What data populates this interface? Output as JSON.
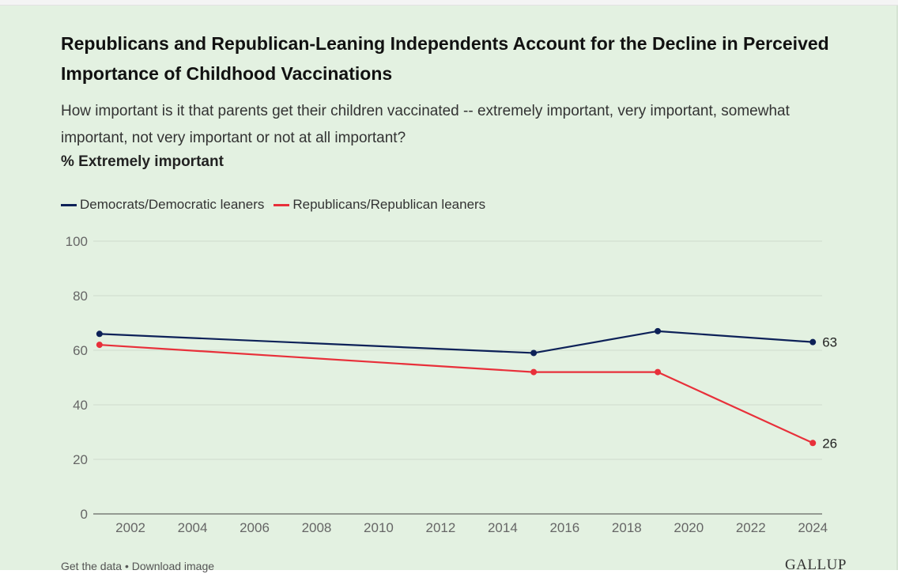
{
  "title": "Republicans and Republican-Leaning Independents Account for the Decline in Perceived Importance of Childhood Vaccinations",
  "subtitle": "How important is it that parents get their children vaccinated -- extremely important, very important, somewhat important, not very important or not at all important?",
  "measure": "% Extremely important",
  "colors": {
    "democrats": "#0d2158",
    "republicans": "#e8303a",
    "background": "#e3f1e1",
    "grid": "#cfdccd"
  },
  "chart_data": {
    "type": "line",
    "title": "Republicans and Republican-Leaning Independents Account for the Decline in Perceived Importance of Childhood Vaccinations",
    "ylabel": "% Extremely important",
    "xlabel": "",
    "xlim": [
      2001,
      2024
    ],
    "ylim": [
      0,
      100
    ],
    "yticks": [
      0,
      20,
      40,
      60,
      80,
      100
    ],
    "xticks": [
      2002,
      2004,
      2006,
      2008,
      2010,
      2012,
      2014,
      2016,
      2018,
      2020,
      2022,
      2024
    ],
    "grid": true,
    "legend_position": "top-left",
    "series": [
      {
        "name": "Democrats/Democratic leaners",
        "color": "#0d2158",
        "x": [
          2001,
          2015,
          2019,
          2024
        ],
        "values": [
          66,
          59,
          67,
          63
        ]
      },
      {
        "name": "Republicans/Republican leaners",
        "color": "#e8303a",
        "x": [
          2001,
          2015,
          2019,
          2024
        ],
        "values": [
          62,
          52,
          52,
          26
        ]
      }
    ],
    "end_labels": [
      "63",
      "26"
    ]
  },
  "footer": {
    "get_data": "Get the data",
    "separator": " • ",
    "download": "Download image"
  },
  "brand": "GALLUP"
}
